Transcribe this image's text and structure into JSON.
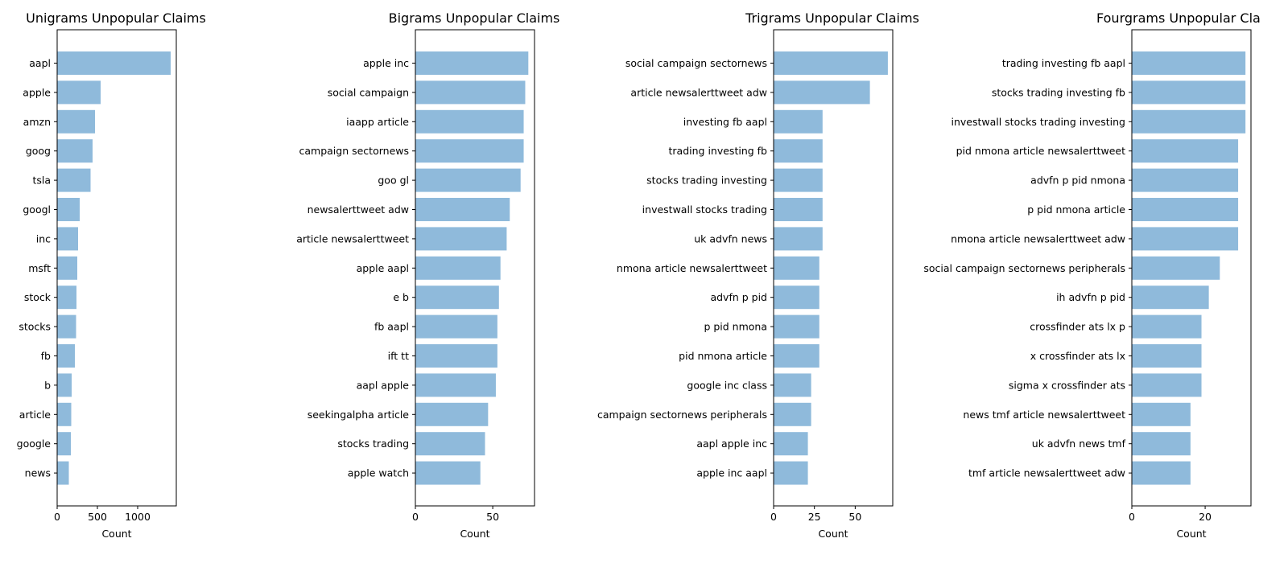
{
  "figure": {
    "bar_color": "#8fbadb",
    "axis_color": "#000000",
    "background": "#ffffff"
  },
  "chart_data": [
    {
      "type": "bar",
      "orientation": "horizontal",
      "title": "Unigrams Unpopular Claims",
      "xlabel": "Count",
      "ylabel": "",
      "xlim": [
        0,
        1480
      ],
      "xticks": [
        0,
        500,
        1000
      ],
      "grid": false,
      "categories": [
        "aapl",
        "apple",
        "amzn",
        "goog",
        "tsla",
        "googl",
        "inc",
        "msft",
        "stock",
        "stocks",
        "fb",
        "b",
        "article",
        "google",
        "news"
      ],
      "values": [
        1410,
        540,
        470,
        440,
        415,
        280,
        260,
        250,
        240,
        235,
        220,
        180,
        175,
        170,
        145
      ]
    },
    {
      "type": "bar",
      "orientation": "horizontal",
      "title": "Bigrams Unpopular Claims",
      "xlabel": "Count",
      "ylabel": "",
      "xlim": [
        0,
        77
      ],
      "xticks": [
        0,
        50
      ],
      "grid": false,
      "categories": [
        "apple inc",
        "social campaign",
        "iaapp article",
        "campaign sectornews",
        "goo gl",
        "newsalerttweet adw",
        "article newsalerttweet",
        "apple aapl",
        "e b",
        "fb aapl",
        "ift tt",
        "aapl apple",
        "seekingalpha article",
        "stocks trading",
        "apple watch"
      ],
      "values": [
        73,
        71,
        70,
        70,
        68,
        61,
        59,
        55,
        54,
        53,
        53,
        52,
        47,
        45,
        42
      ]
    },
    {
      "type": "bar",
      "orientation": "horizontal",
      "title": "Trigrams Unpopular Claims",
      "xlabel": "Count",
      "ylabel": "",
      "xlim": [
        0,
        73
      ],
      "xticks": [
        0,
        25,
        50
      ],
      "grid": false,
      "categories": [
        "social campaign sectornews",
        "article newsalerttweet adw",
        "investing fb aapl",
        "trading investing fb",
        "stocks trading investing",
        "investwall stocks trading",
        "uk advfn news",
        "nmona article newsalerttweet",
        "advfn p pid",
        "p pid nmona",
        "pid nmona article",
        "google inc class",
        "campaign sectornews peripherals",
        "aapl apple inc",
        "apple inc aapl"
      ],
      "values": [
        70,
        59,
        30,
        30,
        30,
        30,
        30,
        28,
        28,
        28,
        28,
        23,
        23,
        21,
        21
      ]
    },
    {
      "type": "bar",
      "orientation": "horizontal",
      "title": "Fourgrams Unpopular Cla",
      "xlabel": "Count",
      "ylabel": "",
      "xlim": [
        0,
        32.5
      ],
      "xticks": [
        0,
        20
      ],
      "grid": false,
      "categories": [
        "trading investing fb aapl",
        "stocks trading investing fb",
        "investwall stocks trading investing",
        "pid nmona article newsalerttweet",
        "advfn p pid nmona",
        "p pid nmona article",
        "nmona article newsalerttweet adw",
        "social campaign sectornews peripherals",
        "ih advfn p pid",
        "crossfinder ats lx p",
        "x crossfinder ats lx",
        "sigma x crossfinder ats",
        "news tmf article newsalerttweet",
        "uk advfn news tmf",
        "tmf article newsalerttweet adw"
      ],
      "values": [
        31,
        31,
        31,
        29,
        29,
        29,
        29,
        24,
        21,
        19,
        19,
        19,
        16,
        16,
        16
      ]
    }
  ]
}
